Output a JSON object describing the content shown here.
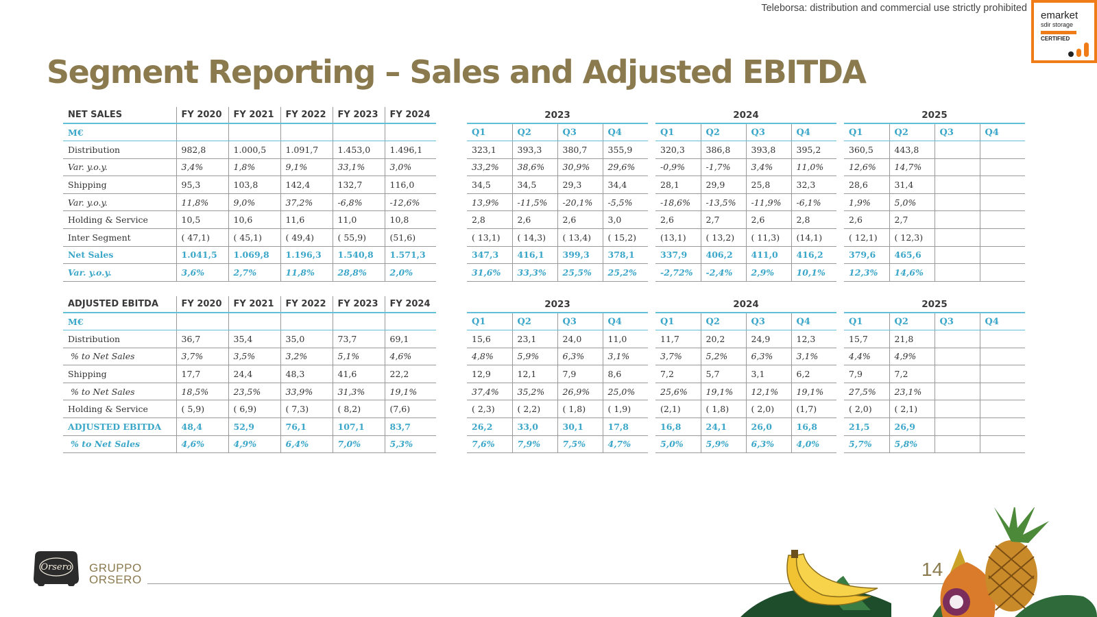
{
  "disclaimer": "Teleborsa: distribution and commercial use strictly prohibited",
  "badge": {
    "line1": "emarket",
    "line2": "sdir storage",
    "line3": "CERTIFIED",
    "accent": "#f07c17"
  },
  "title": "Segment Reporting – Sales and Adjusted EBITDA",
  "colors": {
    "title": "#8a7a4e",
    "accent": "#3aa6c9",
    "rule": "#5fc0d8"
  },
  "fy_headers": [
    "FY 2020",
    "FY 2021",
    "FY 2022",
    "FY 2023",
    "FY 2024"
  ],
  "years": [
    "2023",
    "2024",
    "2025"
  ],
  "quarters": [
    "Q1",
    "Q2",
    "Q3",
    "Q4"
  ],
  "net_sales": {
    "heading": "NET SALES",
    "unit": "M€",
    "rows": [
      {
        "label": "Distribution",
        "fy": [
          "982,8",
          "1.000,5",
          "1.091,7",
          "1.453,0",
          "1.496,1"
        ],
        "q": [
          "323,1",
          "393,3",
          "380,7",
          "355,9",
          "320,3",
          "386,8",
          "393,8",
          "395,2",
          "360,5",
          "443,8",
          "",
          ""
        ]
      },
      {
        "label": "Var. y.o.y.",
        "fy": [
          "3,4%",
          "1,8%",
          "9,1%",
          "33,1%",
          "3,0%"
        ],
        "q": [
          "33,2%",
          "38,6%",
          "30,9%",
          "29,6%",
          "-0,9%",
          "-1,7%",
          "3,4%",
          "11,0%",
          "12,6%",
          "14,7%",
          "",
          ""
        ]
      },
      {
        "label": "Shipping",
        "fy": [
          "95,3",
          "103,8",
          "142,4",
          "132,7",
          "116,0"
        ],
        "q": [
          "34,5",
          "34,5",
          "29,3",
          "34,4",
          "28,1",
          "29,9",
          "25,8",
          "32,3",
          "28,6",
          "31,4",
          "",
          ""
        ]
      },
      {
        "label": "Var. y.o.y.",
        "fy": [
          "11,8%",
          "9,0%",
          "37,2%",
          "-6,8%",
          "-12,6%"
        ],
        "q": [
          "13,9%",
          "-11,5%",
          "-20,1%",
          "-5,5%",
          "-18,6%",
          "-13,5%",
          "-11,9%",
          "-6,1%",
          "1,9%",
          "5,0%",
          "",
          ""
        ]
      },
      {
        "label": "Holding & Service",
        "fy": [
          "10,5",
          "10,6",
          "11,6",
          "11,0",
          "10,8"
        ],
        "q": [
          "2,8",
          "2,6",
          "2,6",
          "3,0",
          "2,6",
          "2,7",
          "2,6",
          "2,8",
          "2,6",
          "2,7",
          "",
          ""
        ]
      },
      {
        "label": "Inter Segment",
        "fy": [
          "( 47,1)",
          "( 45,1)",
          "( 49,4)",
          "( 55,9)",
          "(51,6)"
        ],
        "q": [
          "( 13,1)",
          "( 14,3)",
          "( 13,4)",
          "( 15,2)",
          "(13,1)",
          "( 13,2)",
          "( 11,3)",
          "(14,1)",
          "( 12,1)",
          "( 12,3)",
          "",
          ""
        ]
      },
      {
        "label": "Net Sales",
        "fy": [
          "1.041,5",
          "1.069,8",
          "1.196,3",
          "1.540,8",
          "1.571,3"
        ],
        "q": [
          "347,3",
          "416,1",
          "399,3",
          "378,1",
          "337,9",
          "406,2",
          "411,0",
          "416,2",
          "379,6",
          "465,6",
          "",
          ""
        ]
      },
      {
        "label": "Var. y.o.y.",
        "fy": [
          "3,6%",
          "2,7%",
          "11,8%",
          "28,8%",
          "2,0%"
        ],
        "q": [
          "31,6%",
          "33,3%",
          "25,5%",
          "25,2%",
          "-2,72%",
          "-2,4%",
          "2,9%",
          "10,1%",
          "12,3%",
          "14,6%",
          "",
          ""
        ]
      }
    ]
  },
  "adjusted_ebitda": {
    "heading": "ADJUSTED EBITDA",
    "unit": "M€",
    "rows": [
      {
        "label": "Distribution",
        "fy": [
          "36,7",
          "35,4",
          "35,0",
          "73,7",
          "69,1"
        ],
        "q": [
          "15,6",
          "23,1",
          "24,0",
          "11,0",
          "11,7",
          "20,2",
          "24,9",
          "12,3",
          "15,7",
          "21,8",
          "",
          ""
        ]
      },
      {
        "label": "% to Net Sales",
        "fy": [
          "3,7%",
          "3,5%",
          "3,2%",
          "5,1%",
          "4,6%"
        ],
        "q": [
          "4,8%",
          "5,9%",
          "6,3%",
          "3,1%",
          "3,7%",
          "5,2%",
          "6,3%",
          "3,1%",
          "4,4%",
          "4,9%",
          "",
          ""
        ]
      },
      {
        "label": "Shipping",
        "fy": [
          "17,7",
          "24,4",
          "48,3",
          "41,6",
          "22,2"
        ],
        "q": [
          "12,9",
          "12,1",
          "7,9",
          "8,6",
          "7,2",
          "5,7",
          "3,1",
          "6,2",
          "7,9",
          "7,2",
          "",
          ""
        ]
      },
      {
        "label": "% to Net Sales",
        "fy": [
          "18,5%",
          "23,5%",
          "33,9%",
          "31,3%",
          "19,1%"
        ],
        "q": [
          "37,4%",
          "35,2%",
          "26,9%",
          "25,0%",
          "25,6%",
          "19,1%",
          "12,1%",
          "19,1%",
          "27,5%",
          "23,1%",
          "",
          ""
        ]
      },
      {
        "label": "Holding & Service",
        "fy": [
          "( 5,9)",
          "( 6,9)",
          "( 7,3)",
          "( 8,2)",
          "(7,6)"
        ],
        "q": [
          "( 2,3)",
          "( 2,2)",
          "( 1,8)",
          "( 1,9)",
          "(2,1)",
          "( 1,8)",
          "( 2,0)",
          "(1,7)",
          "( 2,0)",
          "( 2,1)",
          "",
          ""
        ]
      },
      {
        "label": "ADJUSTED EBITDA",
        "fy": [
          "48,4",
          "52,9",
          "76,1",
          "107,1",
          "83,7"
        ],
        "q": [
          "26,2",
          "33,0",
          "30,1",
          "17,8",
          "16,8",
          "24,1",
          "26,0",
          "16,8",
          "21,5",
          "26,9",
          "",
          ""
        ]
      },
      {
        "label": "% to Net Sales",
        "fy": [
          "4,6%",
          "4,9%",
          "6,4%",
          "7,0%",
          "5,3%"
        ],
        "q": [
          "7,6%",
          "7,9%",
          "7,5%",
          "4,7%",
          "5,0%",
          "5,9%",
          "6,3%",
          "4,0%",
          "5,7%",
          "5,8%",
          "",
          ""
        ]
      }
    ]
  },
  "footer": {
    "logo_text": "Orsero",
    "brand_line1": "GRUPPO",
    "brand_line2": "ORSERO",
    "page": "14"
  }
}
